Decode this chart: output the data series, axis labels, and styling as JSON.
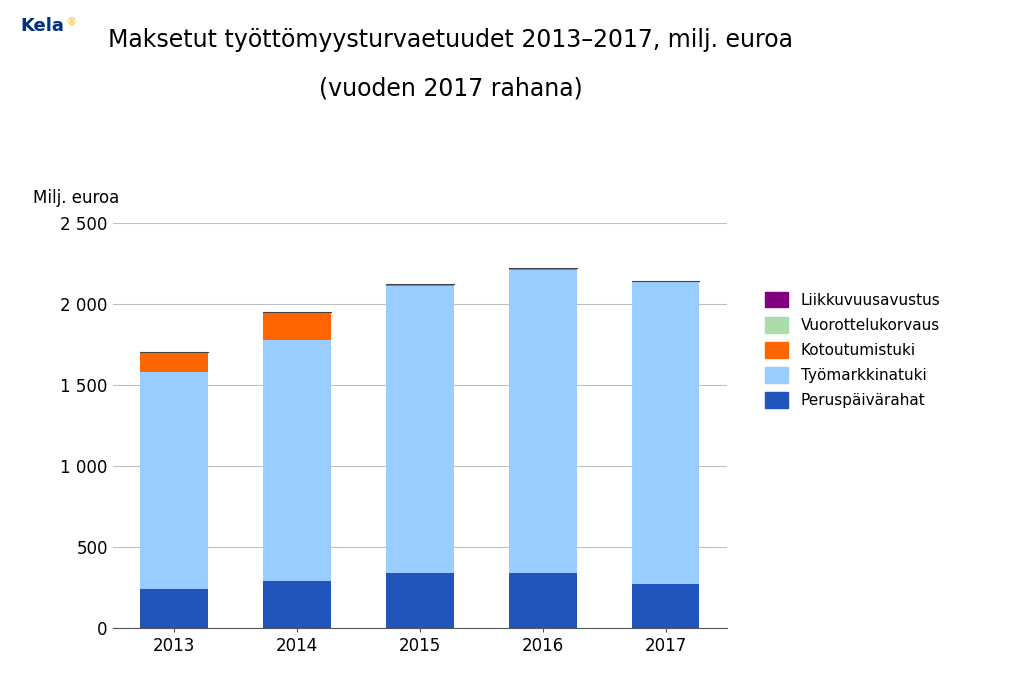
{
  "title_line1": "Maksetut työttömyysturvaetuudet 2013–2017, milj. euroa",
  "title_line2": "(vuoden 2017 rahana)",
  "ylabel": "Milj. euroa",
  "years": [
    "2013",
    "2014",
    "2015",
    "2016",
    "2017"
  ],
  "series": {
    "Peruspäivärahat": [
      240,
      290,
      340,
      340,
      275
    ],
    "Työmarkkinatuki": [
      1340,
      1490,
      1775,
      1875,
      1870
    ],
    "Kotoutumistuki": [
      120,
      170,
      10,
      5,
      0
    ],
    "Vuorottelukorvaus": [
      2,
      2,
      2,
      2,
      0
    ],
    "Liikkuvuusavustus": [
      1,
      1,
      1,
      1,
      1
    ]
  },
  "colors": {
    "Peruspäivärahat": "#2255BB",
    "Työmarkkinatuki": "#99CCFF",
    "Kotoutumistuki": "#FF6600",
    "Vuorottelukorvaus": "#AADDAA",
    "Liikkuvuusavustus": "#800080"
  },
  "ylim": [
    0,
    2500
  ],
  "yticks": [
    0,
    500,
    1000,
    1500,
    2000,
    2500
  ],
  "ytick_labels": [
    "0",
    "500",
    "1 000",
    "1 500",
    "2 000",
    "2 500"
  ],
  "grid_color": "#C0C0C0",
  "background_color": "#FFFFFF",
  "bar_width": 0.55,
  "legend_order": [
    "Liikkuvuusavustus",
    "Vuorottelukorvaus",
    "Kotoutumistuki",
    "Työmarkkinatuki",
    "Peruspäivärahat"
  ],
  "kela_color": "#003082",
  "kela_text": "Kela",
  "title_fontsize": 17,
  "axis_fontsize": 12,
  "legend_fontsize": 11,
  "tick_fontsize": 12
}
